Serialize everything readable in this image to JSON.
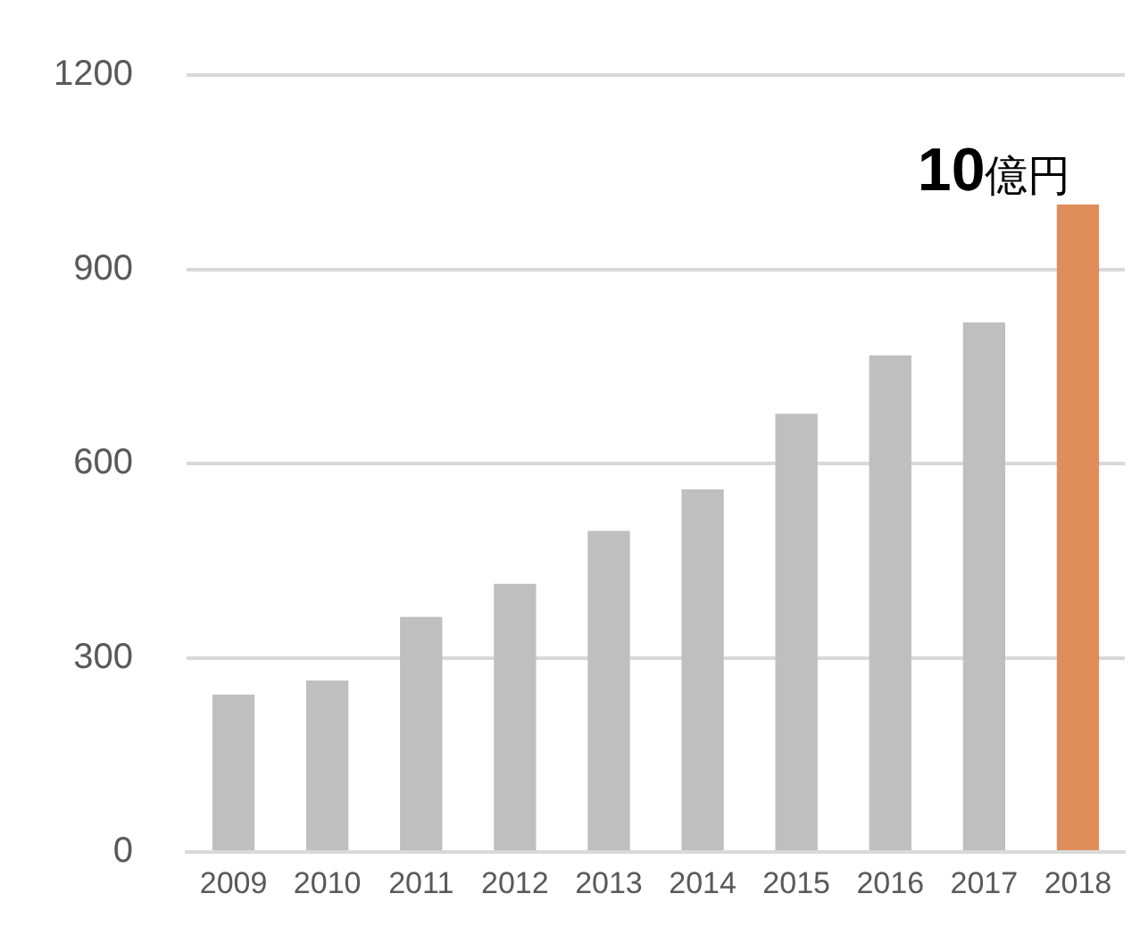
{
  "chart_data": {
    "type": "bar",
    "categories": [
      "2009",
      "2010",
      "2011",
      "2012",
      "2013",
      "2014",
      "2015",
      "2016",
      "2017",
      "2018"
    ],
    "values": [
      243,
      265,
      363,
      414,
      496,
      560,
      677,
      767,
      818,
      1000
    ],
    "colors": [
      "#bfbfbf",
      "#bfbfbf",
      "#bfbfbf",
      "#bfbfbf",
      "#bfbfbf",
      "#bfbfbf",
      "#bfbfbf",
      "#bfbfbf",
      "#bfbfbf",
      "#df8e5b"
    ],
    "ylim": [
      0,
      1200
    ],
    "yticks": [
      0,
      300,
      600,
      900,
      1200
    ],
    "grid": "y",
    "legend": false,
    "annotations": [
      {
        "text": "10億円",
        "x": "2018",
        "y": 1000
      }
    ]
  }
}
